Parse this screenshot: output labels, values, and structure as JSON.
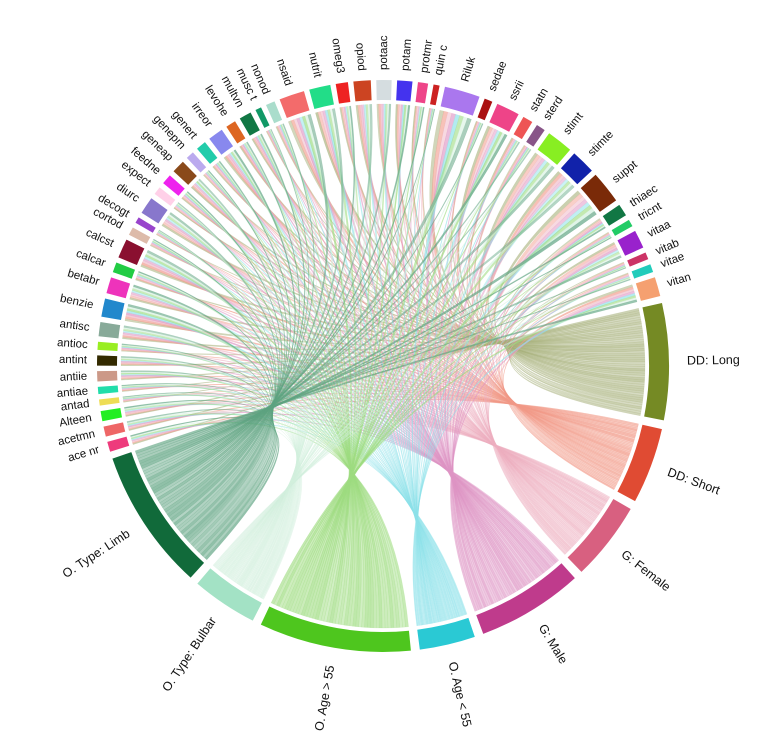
{
  "chart_data": {
    "type": "chord",
    "title": "",
    "sectors": [
      {
        "name": "ace nr",
        "value": 1,
        "color": "#ee3b7c"
      },
      {
        "name": "acetmn",
        "value": 1,
        "color": "#ee6666"
      },
      {
        "name": "Alteen",
        "value": 1,
        "color": "#22ee22"
      },
      {
        "name": "antad",
        "value": 0.6,
        "color": "#eedd55"
      },
      {
        "name": "antiae",
        "value": 0.7,
        "color": "#22ddaa"
      },
      {
        "name": "antiie",
        "value": 1,
        "color": "#cc9988"
      },
      {
        "name": "antint",
        "value": 1,
        "color": "#332a00"
      },
      {
        "name": "antioc",
        "value": 0.8,
        "color": "#99ee22"
      },
      {
        "name": "antisc",
        "value": 1.4,
        "color": "#88aa99"
      },
      {
        "name": "benzie",
        "value": 1.8,
        "color": "#2288cc"
      },
      {
        "name": "betabr",
        "value": 1.6,
        "color": "#ee33bb"
      },
      {
        "name": "calcar",
        "value": 1,
        "color": "#22cc44"
      },
      {
        "name": "calcst",
        "value": 1.9,
        "color": "#8a1030"
      },
      {
        "name": "cortod",
        "value": 0.8,
        "color": "#ddbbaa"
      },
      {
        "name": "decogt",
        "value": 0.6,
        "color": "#9944cc"
      },
      {
        "name": "diurc",
        "value": 1.7,
        "color": "#8877cc"
      },
      {
        "name": "expect",
        "value": 0.8,
        "color": "#ffd0e8"
      },
      {
        "name": "feedne",
        "value": 1,
        "color": "#ee22ee"
      },
      {
        "name": "geneap",
        "value": 1.3,
        "color": "#8a4a1a"
      },
      {
        "name": "genepm",
        "value": 0.8,
        "color": "#bbaaee"
      },
      {
        "name": "genert",
        "value": 1,
        "color": "#22ccaa"
      },
      {
        "name": "irreor",
        "value": 1.5,
        "color": "#8888ee"
      },
      {
        "name": "levohe",
        "value": 1,
        "color": "#dd6622"
      },
      {
        "name": "multvn",
        "value": 1.2,
        "color": "#117744"
      },
      {
        "name": "musc t",
        "value": 0.6,
        "color": "#119966"
      },
      {
        "name": "nonod",
        "value": 0.9,
        "color": "#aaddcc"
      },
      {
        "name": "nsaid",
        "value": 2.5,
        "color": "#f36b6b"
      },
      {
        "name": "nutrit",
        "value": 2.1,
        "color": "#22dd88"
      },
      {
        "name": "omeg3",
        "value": 1.2,
        "color": "#ee2222"
      },
      {
        "name": "opiod",
        "value": 1.7,
        "color": "#cc4422"
      },
      {
        "name": "potaac",
        "value": 1.5,
        "color": "#d5dde0"
      },
      {
        "name": "potam",
        "value": 1.5,
        "color": "#4433ee"
      },
      {
        "name": "protmr",
        "value": 1,
        "color": "#ee4488"
      },
      {
        "name": "quin c",
        "value": 0.6,
        "color": "#cc2222"
      },
      {
        "name": "Riluk",
        "value": 3.5,
        "color": "#aa77ee"
      },
      {
        "name": "sedae",
        "value": 0.8,
        "color": "#aa1111"
      },
      {
        "name": "ssrii",
        "value": 2.3,
        "color": "#ee4488"
      },
      {
        "name": "statn",
        "value": 1,
        "color": "#ee5555"
      },
      {
        "name": "sterd",
        "value": 0.9,
        "color": "#885588"
      },
      {
        "name": "stimt",
        "value": 2.6,
        "color": "#88ee22"
      },
      {
        "name": "stimte",
        "value": 2.4,
        "color": "#1122aa"
      },
      {
        "name": "suppt",
        "value": 3.2,
        "color": "#7a2a08"
      },
      {
        "name": "thiaec",
        "value": 1.2,
        "color": "#117744"
      },
      {
        "name": "tricnt",
        "value": 0.7,
        "color": "#22cc66"
      },
      {
        "name": "vitaa",
        "value": 1.8,
        "color": "#9922cc"
      },
      {
        "name": "vitab",
        "value": 0.7,
        "color": "#cc3366"
      },
      {
        "name": "vitae",
        "value": 0.8,
        "color": "#22ccbb"
      },
      {
        "name": "vitan",
        "value": 1.9,
        "color": "#f5a070"
      },
      {
        "name": "DD: Long",
        "value": 11.5,
        "color": "#758a24"
      },
      {
        "name": "DD: Short",
        "value": 7.5,
        "color": "#e04b33"
      },
      {
        "name": "G: Female",
        "value": 7.8,
        "color": "#d86080"
      },
      {
        "name": "G: Male",
        "value": 10.5,
        "color": "#bf3b8c"
      },
      {
        "name": "O. Age < 55",
        "value": 5.5,
        "color": "#2ac9d4"
      },
      {
        "name": "O. Age > 55",
        "value": 15,
        "color": "#4ec61e"
      },
      {
        "name": "O. Type: Bulbar",
        "value": 6.5,
        "color": "#a3e2c5"
      },
      {
        "name": "O. Type: Limb",
        "value": 14,
        "color": "#116a3a"
      }
    ],
    "group_names": [
      "DD: Long",
      "DD: Short",
      "G: Female",
      "G: Male",
      "O. Age < 55",
      "O. Age > 55",
      "O. Type: Bulbar",
      "O. Type: Limb"
    ],
    "group_chord_colors": {
      "DD: Long": "#a6b07a",
      "DD: Short": "#f29a88",
      "G: Female": "#eeb0c0",
      "G: Male": "#de95c4",
      "O. Age < 55": "#8fe2ea",
      "O. Age > 55": "#9edc80",
      "O. Type: Bulbar": "#d2efdd",
      "O. Type: Limb": "#5ea381"
    },
    "legend": "none",
    "grid": false
  }
}
